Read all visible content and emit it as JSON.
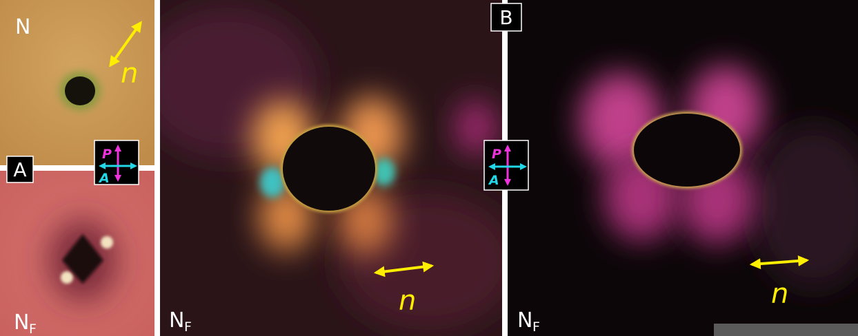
{
  "panels": [
    {
      "label": "N",
      "director": "n"
    },
    {
      "panel_letter": "A",
      "label": "N",
      "subscript": "F"
    },
    {
      "label": "N",
      "subscript": "F",
      "director": "n"
    },
    {
      "panel_letter": "B",
      "label": "N",
      "subscript": "F",
      "director": "n"
    }
  ],
  "polarizer": {
    "p": "P",
    "a": "A"
  }
}
